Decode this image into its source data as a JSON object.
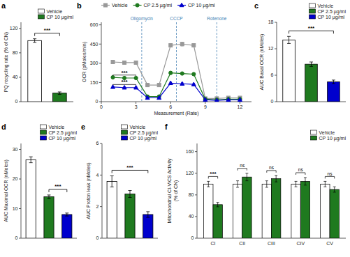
{
  "chart_data": [
    {
      "type": "bar",
      "title": "a",
      "categories": [
        "Vehicle",
        "CP 10 µg/ml"
      ],
      "values": [
        100,
        14
      ],
      "errors": [
        3,
        2
      ],
      "colors": [
        "white",
        "#1f7a1f"
      ],
      "ylabel": "PQ recycling rate (% of CN)",
      "ylim": [
        0,
        130
      ],
      "yticks": [
        0,
        40,
        80,
        120
      ],
      "tick_labels": "y",
      "legend": "upper right",
      "annotations": [
        {
          "text": "***",
          "from": "Vehicle",
          "to": "CP 10 µg/ml"
        }
      ]
    },
    {
      "type": "line",
      "title": "b",
      "x": [
        1,
        2,
        3,
        4,
        5,
        6,
        7,
        8,
        9,
        10,
        11,
        12
      ],
      "series": [
        {
          "name": "Vehicle",
          "color": "#999999",
          "marker": "square",
          "values": [
            310,
            305,
            305,
            130,
            130,
            440,
            450,
            440,
            25,
            25,
            30,
            30
          ],
          "errors": [
            10,
            8,
            8,
            8,
            8,
            12,
            15,
            12,
            5,
            5,
            5,
            5
          ]
        },
        {
          "name": "CP 2.5 µg/ml",
          "color": "#1f7a1f",
          "marker": "circle",
          "values": [
            190,
            185,
            185,
            40,
            40,
            225,
            220,
            215,
            20,
            15,
            20,
            20
          ],
          "errors": [
            8,
            7,
            7,
            5,
            5,
            10,
            10,
            10,
            4,
            4,
            4,
            4
          ]
        },
        {
          "name": "CP 10 µg/ml",
          "color": "#0000cd",
          "marker": "triangle",
          "values": [
            115,
            110,
            110,
            30,
            30,
            145,
            140,
            135,
            15,
            10,
            15,
            15
          ],
          "errors": [
            6,
            6,
            6,
            4,
            4,
            8,
            8,
            8,
            3,
            3,
            3,
            3
          ]
        }
      ],
      "xlabel": "Measurement (Rate)",
      "ylabel": "OCR (pMoles/min)",
      "xlim": [
        0,
        13
      ],
      "xticks": [
        0,
        3,
        6,
        9,
        12
      ],
      "ylim": [
        0,
        620
      ],
      "yticks": [
        0,
        150,
        300,
        450,
        600
      ],
      "legend": "upper left",
      "annotations": [
        {
          "text": "Oligomycin",
          "x": 3.5,
          "color": "steelblue"
        },
        {
          "text": "CCCP",
          "x": 6.5,
          "color": "steelblue"
        },
        {
          "text": "Rotenone",
          "x": 10.0,
          "color": "steelblue"
        },
        {
          "text": "***",
          "x": [
            1,
            3
          ],
          "y": [
            202,
            208
          ]
        },
        {
          "text": "***",
          "x": [
            1,
            3
          ],
          "y": [
            128,
            134
          ]
        }
      ]
    },
    {
      "type": "bar",
      "title": "c",
      "categories": [
        "Vehicle",
        "CP 2.5 µg/ml",
        "CP 10 µg/ml"
      ],
      "values": [
        14.0,
        8.5,
        4.5
      ],
      "errors": [
        0.8,
        0.5,
        0.4
      ],
      "colors": [
        "white",
        "#1f7a1f",
        "#0000cd"
      ],
      "ylabel": "AUC Basal OCR (nMoles)",
      "ylim": [
        0,
        18
      ],
      "yticks": [
        0,
        6,
        12,
        18
      ],
      "tick_labels": "y",
      "legend": "upper right",
      "annotations": [
        {
          "text": "***",
          "from": "Vehicle",
          "to": "CP 10 µg/ml"
        }
      ]
    },
    {
      "type": "bar",
      "title": "d",
      "categories": [
        "Vehicle",
        "CP 2.5 µg/ml",
        "CP 10 µg/ml"
      ],
      "values": [
        26.5,
        14.0,
        8.0
      ],
      "errors": [
        1.0,
        0.6,
        0.5
      ],
      "colors": [
        "white",
        "#1f7a1f",
        "#0000cd"
      ],
      "ylabel": "AUC Maximal OCR (nMoles)",
      "ylim": [
        0,
        32
      ],
      "yticks": [
        0,
        10,
        20,
        30
      ],
      "tick_labels": "y",
      "legend": "upper right",
      "annotations": [
        {
          "text": "***",
          "from": "CP 2.5 µg/ml",
          "to": "CP 10 µg/ml"
        }
      ]
    },
    {
      "type": "bar",
      "title": "e",
      "categories": [
        "Vehicle",
        "CP 2.5 µg/ml",
        "CP 10 µg/ml"
      ],
      "values": [
        3.6,
        2.8,
        1.5
      ],
      "errors": [
        0.35,
        0.22,
        0.18
      ],
      "colors": [
        "white",
        "#1f7a1f",
        "#0000cd"
      ],
      "ylabel": "AUC Proton leak (nMoles)",
      "ylim": [
        0,
        6
      ],
      "yticks": [
        0,
        2,
        4,
        6
      ],
      "tick_labels": "y",
      "legend": "upper right",
      "annotations": [
        {
          "text": "***",
          "from": "Vehicle",
          "to": "CP 10 µg/ml"
        }
      ]
    },
    {
      "type": "bar",
      "title": "f",
      "categories": [
        "CI",
        "CII",
        "CIII",
        "CIV",
        "CV"
      ],
      "series": [
        {
          "name": "Vehicle",
          "color": "white",
          "values": [
            100,
            100,
            100,
            100,
            100
          ],
          "errors": [
            5,
            6,
            6,
            5,
            5
          ]
        },
        {
          "name": "CP 10 µg/ml",
          "color": "#1f7a1f",
          "values": [
            62,
            113,
            110,
            105,
            90
          ],
          "errors": [
            4,
            7,
            6,
            7,
            5
          ]
        }
      ],
      "ylabel": "Mitochondrial CI-V/CS Activity\n(% of CN)",
      "ylim": [
        0,
        175
      ],
      "yticks": [
        0,
        40,
        80,
        120,
        160
      ],
      "legend": "upper right",
      "annotations": [
        {
          "text": "***",
          "category": "CI"
        },
        {
          "text": "ns",
          "category": "CII"
        },
        {
          "text": "ns",
          "category": "CIII"
        },
        {
          "text": "ns",
          "category": "CIV"
        },
        {
          "text": "ns",
          "category": "CV"
        }
      ]
    }
  ]
}
